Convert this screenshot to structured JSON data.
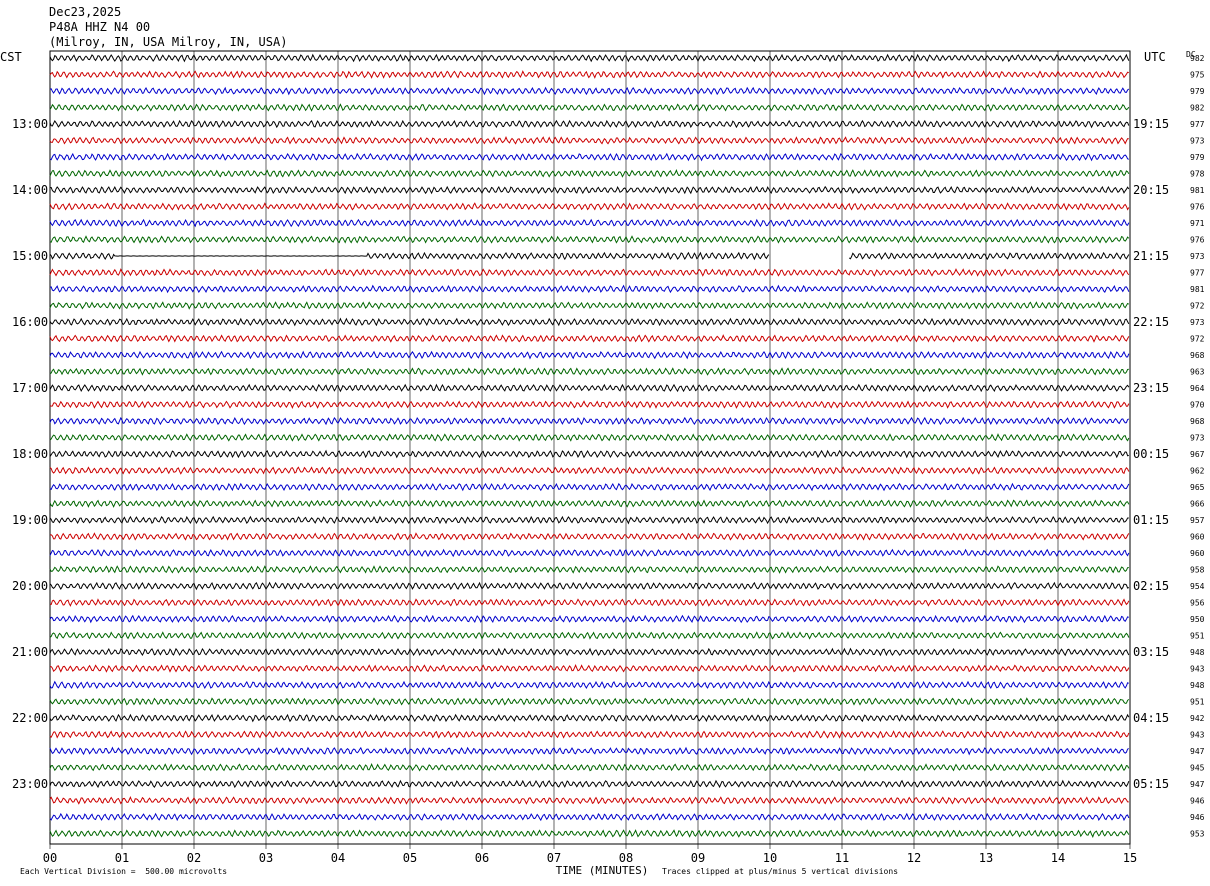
{
  "header": {
    "date": "Dec23,2025",
    "station": "P48A HHZ N4 00",
    "location": "(Milroy, IN, USA Milroy, IN, USA)"
  },
  "left_tz": "CST",
  "right_tz": "UTC",
  "dc_label": "DC",
  "chart_data": {
    "type": "line",
    "title": "",
    "xlabel": "TIME (MINUTES)",
    "xlim": [
      0,
      15
    ],
    "x_ticks": [
      "00",
      "01",
      "02",
      "03",
      "04",
      "05",
      "06",
      "07",
      "08",
      "09",
      "10",
      "11",
      "12",
      "13",
      "14",
      "15"
    ],
    "row_colors": [
      "#000000",
      "#cc0000",
      "#0000cc",
      "#006600"
    ],
    "left_hour_labels": [
      "13:00",
      "14:00",
      "15:00",
      "16:00",
      "17:00",
      "18:00",
      "19:00",
      "20:00",
      "21:00",
      "22:00",
      "23:00"
    ],
    "right_hour_labels": [
      "19:15",
      "20:15",
      "21:15",
      "22:15",
      "23:15",
      "00:15",
      "01:15",
      "02:15",
      "03:15",
      "04:15",
      "05:15"
    ],
    "dc_offsets": [
      "982",
      "975",
      "979",
      "982",
      "977",
      "973",
      "979",
      "978",
      "981",
      "976",
      "971",
      "976",
      "973",
      "977",
      "981",
      "972",
      "973",
      "972",
      "968",
      "963",
      "964",
      "970",
      "968",
      "973",
      "967",
      "962",
      "965",
      "966",
      "957",
      "960",
      "960",
      "958",
      "954",
      "956",
      "950",
      "951",
      "948",
      "943",
      "948",
      "951",
      "942",
      "943",
      "947",
      "945",
      "947",
      "946",
      "946",
      "953"
    ],
    "data_gap": {
      "row": 12,
      "from_minute": 10.0,
      "to_minute": 11.1
    },
    "flat_segment": {
      "row": 12,
      "from_minute": 0.9,
      "to_minute": 4.4
    }
  },
  "footer": {
    "scale": "Each Vertical Division =  500.00 microvolts",
    "clip": "Traces clipped at plus/minus 5 vertical divisions"
  }
}
